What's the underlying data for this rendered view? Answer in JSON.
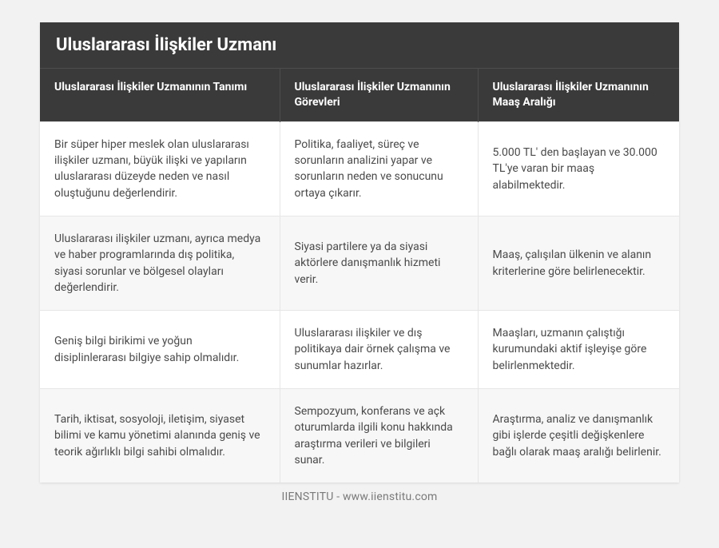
{
  "title": "Uluslararası İlişkiler Uzmanı",
  "table": {
    "type": "table",
    "background_color": "#ffffff",
    "alt_row_color": "#f7f7f7",
    "header_bg": "#3a3a3a",
    "header_fg": "#ffffff",
    "border_color": "#e6e6e6",
    "header_fontsize": 14,
    "body_fontsize": 14,
    "title_fontsize": 22,
    "column_widths_pct": [
      37.5,
      31,
      31.5
    ],
    "columns": [
      "Uluslararası İlişkiler Uzmanının Tanımı",
      "Uluslararası İlişkiler Uzmanının Görevleri",
      "Uluslararası İlişkiler Uzmanının Maaş Aralığı"
    ],
    "rows": [
      [
        "Bir süper hiper meslek olan uluslararası ilişkiler uzmanı, büyük ilişki ve yapıların uluslararası düzeyde neden ve nasıl oluştuğunu değerlendirir.",
        "Politika, faaliyet, süreç ve sorunların analizini yapar ve sorunların neden ve sonucunu ortaya çıkarır.",
        "5.000 TL' den başlayan ve 30.000 TL'ye varan bir maaş alabilmektedir."
      ],
      [
        "Uluslararası ilişkiler uzmanı, ayrıca medya ve haber programlarında dış politika, siyasi sorunlar ve bölgesel olayları değerlendirir.",
        "Siyasi partilere ya da siyasi aktörlere danışmanlık hizmeti verir.",
        "Maaş, çalışılan ülkenin ve alanın kriterlerine göre belirlenecektir."
      ],
      [
        "Geniş bilgi birikimi ve yoğun disiplinlerarası bilgiye sahip olmalıdır.",
        "Uluslararası ilişkiler ve dış politikaya dair örnek çalışma ve sunumlar hazırlar.",
        "Maaşları, uzmanın çalıştığı kurumundaki aktif işleyişe göre belirlenmektedir."
      ],
      [
        "Tarih, iktisat, sosyoloji, iletişim, siyaset bilimi ve kamu yönetimi alanında geniş ve teorik ağırlıklı bilgi sahibi olmalıdır.",
        "Sempozyum, konferans ve açk oturumlarda ilgili konu hakkında araştırma verileri ve bilgileri sunar.",
        "Araştırma, analiz ve danışmanlık gibi işlerde çeşitli değişkenlere bağlı olarak maaş aralığı belirlenir."
      ]
    ]
  },
  "footer": "IIENSTITU - www.iienstitu.com",
  "page_bg": "#f2f2f2",
  "text_color": "#4a4a4a"
}
